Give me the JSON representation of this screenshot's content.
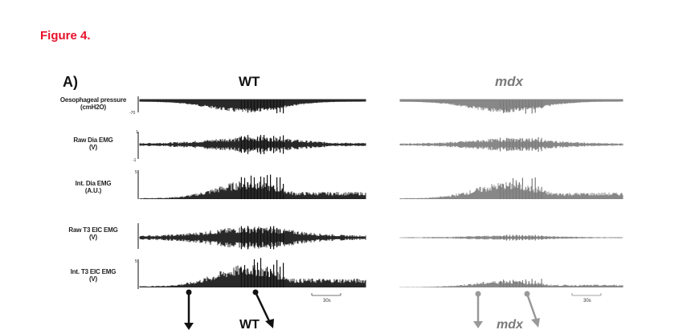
{
  "figure": {
    "title": "Figure 4.",
    "panel": "A)",
    "groups": {
      "left": "WT",
      "right": "mdx"
    },
    "bottom_labels": {
      "left": "WT",
      "right": "mdx"
    },
    "scale_bar": "30s",
    "rows": [
      {
        "line1": "Oesophageal pressure",
        "line2": "(cmH2O)",
        "tick_top": "",
        "tick_bottom": "-70"
      },
      {
        "line1": "Raw Dia EMG",
        "line2": "(V)",
        "tick_top": "1",
        "tick_bottom": "-1"
      },
      {
        "line1": "Int. Dia EMG",
        "line2": "(A.U.)",
        "tick_top": "5",
        "tick_bottom": ""
      },
      {
        "line1": "Raw T3 EIC EMG",
        "line2": "(V)",
        "tick_top": "",
        "tick_bottom": ""
      },
      {
        "line1": "Int. T3 EIC EMG",
        "line2": "(V)",
        "tick_top": "5",
        "tick_bottom": ""
      }
    ]
  },
  "colors": {
    "title": "#e8102a",
    "wt": "#111111",
    "mdx": "#7a7a7a"
  }
}
